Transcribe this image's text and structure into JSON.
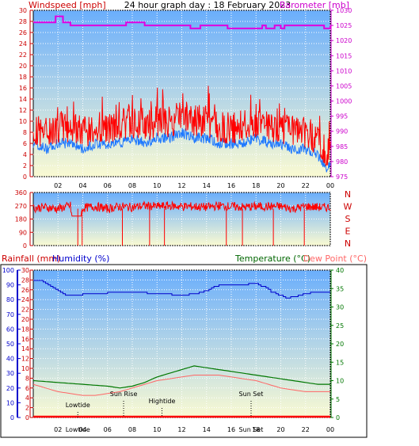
{
  "header": {
    "title": "24 hour graph day : 18 February 2023",
    "left_label": "Windspeed [mph]",
    "right_label": "Barometer [mb]"
  },
  "colors": {
    "wind_gust": "#ff0000",
    "wind_avg": "#1e78ff",
    "barometer": "#e000e0",
    "humidity": "#0000cc",
    "temperature": "#007700",
    "dew_point": "#ff6666",
    "rainfall": "#ff0000",
    "plot_bg_top": "#6aaefc",
    "plot_bg_bottom": "#fafad2"
  },
  "chart_data": [
    {
      "type": "line",
      "name": "wind_and_pressure",
      "x_ticks": [
        "02",
        "04",
        "06",
        "08",
        "10",
        "12",
        "14",
        "16",
        "18",
        "20",
        "22",
        "00"
      ],
      "left_axis": {
        "label": "Windspeed [mph]",
        "ylim": [
          0,
          30
        ],
        "ticks": [
          0,
          2,
          4,
          6,
          8,
          10,
          12,
          14,
          16,
          18,
          20,
          22,
          24,
          26,
          28,
          30
        ]
      },
      "right_axis": {
        "label": "Barometer [mb]",
        "ylim": [
          975,
          1030
        ],
        "ticks": [
          975,
          980,
          985,
          990,
          995,
          1000,
          1005,
          1010,
          1015,
          1020,
          1025,
          1030
        ]
      },
      "series": [
        {
          "name": "Barometer",
          "axis": "right",
          "x": [
            0,
            1.6,
            1.8,
            2.4,
            3.0,
            6.0,
            7.5,
            9.0,
            10.5,
            12.0,
            12.7,
            13.5,
            15.0,
            15.7,
            17.0,
            18.5,
            18.8,
            19.5,
            20.0,
            20.3,
            21.5,
            22.5,
            23.2,
            23.5,
            24.0
          ],
          "y": [
            1026,
            1026,
            1028,
            1026,
            1025,
            1025,
            1026,
            1025,
            1025,
            1025,
            1024,
            1025,
            1025,
            1024,
            1024,
            1025,
            1024,
            1025,
            1024,
            1025,
            1025,
            1025,
            1025,
            1024,
            1025
          ]
        },
        {
          "name": "Average wind",
          "axis": "left",
          "x": [
            0,
            1,
            2,
            3,
            4,
            5,
            6,
            7,
            8,
            9,
            10,
            11,
            12,
            13,
            14,
            15,
            16,
            17,
            18,
            19,
            20,
            21,
            22,
            23,
            23.7,
            24
          ],
          "y": [
            6,
            5,
            6,
            6,
            5,
            6,
            6,
            6,
            7,
            6,
            7,
            7,
            8,
            7,
            7,
            6,
            6,
            6,
            7,
            6,
            6,
            5,
            5,
            4,
            1.5,
            3
          ]
        },
        {
          "name": "Wind gust",
          "axis": "left",
          "x": [
            0,
            1,
            2,
            3,
            4,
            5,
            6,
            7,
            8,
            9,
            10,
            11,
            12,
            13,
            14,
            15,
            16,
            17,
            18,
            19,
            20,
            21,
            22,
            23,
            23.7,
            24
          ],
          "y": [
            8,
            8,
            9,
            9,
            8,
            8,
            8,
            9,
            10,
            9,
            10,
            10,
            11,
            10,
            10,
            9,
            9,
            9,
            10,
            9,
            9,
            8,
            8,
            7,
            2,
            7
          ]
        }
      ]
    },
    {
      "type": "scatter",
      "name": "wind_direction",
      "y_ticks": [
        0,
        90,
        180,
        270,
        360
      ],
      "right_labels": [
        "N",
        "W",
        "S",
        "E",
        "N"
      ],
      "ylim": [
        0,
        360
      ],
      "x": [
        0,
        1,
        2,
        3,
        3.4,
        4,
        5,
        6,
        7,
        8,
        9,
        10,
        11,
        12,
        13,
        14,
        15,
        16,
        17,
        18,
        19,
        20,
        21,
        22,
        23,
        24
      ],
      "y": [
        255,
        260,
        250,
        270,
        20,
        255,
        265,
        250,
        265,
        260,
        270,
        265,
        270,
        265,
        265,
        260,
        270,
        265,
        260,
        265,
        265,
        265,
        250,
        265,
        260,
        258
      ]
    },
    {
      "type": "line",
      "name": "humidity_temperature_rain",
      "x_ticks": [
        "02",
        "04",
        "06",
        "08",
        "10",
        "12",
        "14",
        "16",
        "18",
        "20",
        "22",
        "00"
      ],
      "left_axes": [
        {
          "label": "Humidity (%)",
          "ylim": [
            0,
            100
          ],
          "ticks": [
            0,
            10,
            20,
            30,
            40,
            50,
            60,
            70,
            80,
            90,
            100
          ]
        },
        {
          "label": "Rainfall (mm)",
          "ylim": [
            0,
            30
          ],
          "ticks": [
            0,
            2,
            4,
            6,
            8,
            10,
            12,
            14,
            16,
            18,
            20,
            22,
            24,
            26,
            28,
            30
          ]
        }
      ],
      "right_axis": {
        "label": "Temperature (°C)",
        "label2": "Dew Point (°C)",
        "ylim": [
          0,
          40
        ],
        "ticks": [
          0,
          5,
          10,
          15,
          20,
          25,
          30,
          35,
          40
        ]
      },
      "series": [
        {
          "name": "Humidity (%)",
          "axis": "humidity",
          "x": [
            0,
            0.5,
            1.5,
            2.5,
            3.0,
            5,
            7,
            8,
            10,
            12,
            13,
            14,
            14.5,
            15.5,
            16.5,
            18,
            18.5,
            19.5,
            20.5,
            21.5,
            22.5,
            24
          ],
          "y": [
            93,
            93,
            88,
            83,
            83,
            84,
            85,
            85,
            84,
            83,
            84,
            86,
            89,
            90,
            90,
            91,
            89,
            84,
            81,
            83,
            85,
            85
          ]
        },
        {
          "name": "Temperature (°C)",
          "axis": "right",
          "x": [
            0,
            2,
            4,
            6,
            7,
            8,
            9,
            10,
            11,
            12,
            13,
            14,
            15,
            16,
            17,
            18,
            19,
            20,
            21,
            22,
            23,
            24
          ],
          "y": [
            10,
            9.5,
            9,
            8.5,
            8,
            8.5,
            9.5,
            11,
            12,
            13,
            14,
            13.5,
            13,
            12.5,
            12,
            11.5,
            11,
            10.5,
            10,
            9.5,
            9,
            9
          ]
        },
        {
          "name": "Dew Point (°C)",
          "axis": "right",
          "x": [
            0,
            1,
            2,
            3,
            4,
            5,
            6,
            7,
            8,
            9,
            10,
            11,
            12,
            13,
            14,
            15,
            16,
            17,
            18,
            19,
            20,
            21,
            22,
            23,
            24
          ],
          "y": [
            9,
            8,
            7,
            6.5,
            6,
            6,
            6.5,
            7,
            8,
            9,
            10,
            10.5,
            11,
            11.5,
            11.5,
            11.5,
            11,
            10.5,
            10,
            9,
            8,
            7.5,
            7,
            7,
            7
          ]
        },
        {
          "name": "Rainfall (mm)",
          "axis": "rain",
          "x": [
            0,
            24
          ],
          "y": [
            0,
            0
          ]
        }
      ],
      "annotations": [
        {
          "label": "Lowtide",
          "x": 3.6
        },
        {
          "label": "Sun Rise",
          "x": 7.3
        },
        {
          "label": "Hightide",
          "x": 10.4
        },
        {
          "label": "Sun Set",
          "x": 17.6
        }
      ],
      "bottom_tick_labels": [
        "02",
        "Lowtide",
        "04",
        "06",
        "08",
        "10",
        "12",
        "14",
        "16",
        "Sun Set",
        "18",
        "20",
        "22",
        "00"
      ]
    }
  ]
}
